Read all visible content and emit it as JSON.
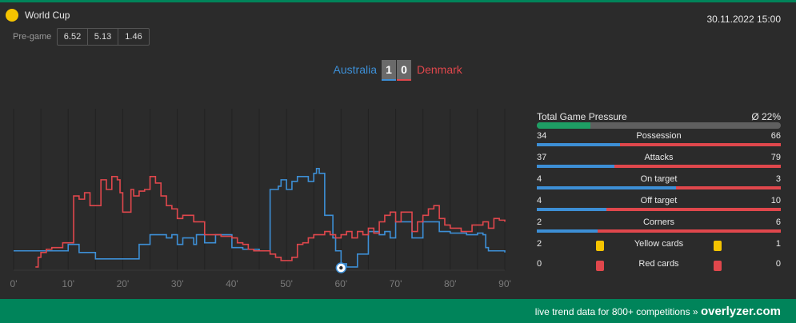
{
  "header": {
    "competition": "World Cup",
    "datetime": "30.11.2022 15:00",
    "pregame_label": "Pre-game",
    "odds": [
      "6.52",
      "5.13",
      "1.46"
    ]
  },
  "match": {
    "home_team": "Australia",
    "away_team": "Denmark",
    "home_score": "1",
    "away_score": "0"
  },
  "chart_data": {
    "type": "line",
    "title": "",
    "xlabel": "",
    "ylabel": "",
    "xlim": [
      0,
      90
    ],
    "x_ticks": [
      "0'",
      "10'",
      "20'",
      "30'",
      "40'",
      "50'",
      "60'",
      "70'",
      "80'",
      "90'"
    ],
    "grid": "vertical",
    "goal_event": {
      "minute": 60,
      "team": "Australia"
    },
    "series": [
      {
        "name": "Australia",
        "color": "#3d8fd6",
        "points": [
          [
            0,
            0.12
          ],
          [
            4,
            0.12
          ],
          [
            5,
            0.12
          ],
          [
            9,
            0.12
          ],
          [
            10,
            0.16
          ],
          [
            11,
            0.16
          ],
          [
            12,
            0.11
          ],
          [
            14,
            0.11
          ],
          [
            15,
            0.07
          ],
          [
            22,
            0.07
          ],
          [
            23,
            0.16
          ],
          [
            24,
            0.16
          ],
          [
            25,
            0.22
          ],
          [
            27,
            0.22
          ],
          [
            28,
            0.2
          ],
          [
            29,
            0.22
          ],
          [
            30,
            0.16
          ],
          [
            31,
            0.2
          ],
          [
            32,
            0.2
          ],
          [
            33,
            0.16
          ],
          [
            33.5,
            0.22
          ],
          [
            34,
            0.22
          ],
          [
            35,
            0.17
          ],
          [
            36,
            0.17
          ],
          [
            37,
            0.22
          ],
          [
            39,
            0.22
          ],
          [
            40,
            0.14
          ],
          [
            41,
            0.14
          ],
          [
            42,
            0.13
          ],
          [
            44,
            0.13
          ],
          [
            45,
            0.12
          ],
          [
            46,
            0.12
          ],
          [
            47,
            0.5
          ],
          [
            48,
            0.5
          ],
          [
            48.5,
            0.52
          ],
          [
            49,
            0.56
          ],
          [
            50,
            0.5
          ],
          [
            51,
            0.55
          ],
          [
            52,
            0.58
          ],
          [
            53,
            0.58
          ],
          [
            54,
            0.55
          ],
          [
            55,
            0.6
          ],
          [
            55.5,
            0.63
          ],
          [
            56,
            0.6
          ],
          [
            57,
            0.34
          ],
          [
            58,
            0.34
          ],
          [
            58.5,
            0.2
          ],
          [
            59,
            0.12
          ],
          [
            60,
            0.04
          ],
          [
            61,
            0.02
          ],
          [
            62,
            0.02
          ],
          [
            63,
            0.1
          ],
          [
            64,
            0.1
          ],
          [
            65,
            0.24
          ],
          [
            66,
            0.24
          ],
          [
            67,
            0.22
          ],
          [
            68,
            0.24
          ],
          [
            69,
            0.2
          ],
          [
            70,
            0.3
          ],
          [
            72,
            0.3
          ],
          [
            73,
            0.2
          ],
          [
            74,
            0.2
          ],
          [
            75,
            0.3
          ],
          [
            77,
            0.3
          ],
          [
            78,
            0.24
          ],
          [
            79,
            0.24
          ],
          [
            80,
            0.23
          ],
          [
            81,
            0.23
          ],
          [
            82,
            0.23
          ],
          [
            83,
            0.22
          ],
          [
            84,
            0.22
          ],
          [
            85,
            0.23
          ],
          [
            86,
            0.22
          ],
          [
            86.5,
            0.14
          ],
          [
            87,
            0.12
          ],
          [
            88,
            0.12
          ],
          [
            90,
            0.11
          ]
        ],
        "values_note": "pressure fraction 0-1 read from line height"
      },
      {
        "name": "Denmark",
        "color": "#e0474c",
        "points": [
          [
            4,
            0.02
          ],
          [
            4.5,
            0.08
          ],
          [
            5,
            0.11
          ],
          [
            6,
            0.13
          ],
          [
            7,
            0.14
          ],
          [
            9,
            0.17
          ],
          [
            10,
            0.17
          ],
          [
            11,
            0.46
          ],
          [
            12,
            0.44
          ],
          [
            13,
            0.48
          ],
          [
            14,
            0.4
          ],
          [
            15,
            0.4
          ],
          [
            16,
            0.56
          ],
          [
            17,
            0.5
          ],
          [
            18,
            0.58
          ],
          [
            19,
            0.56
          ],
          [
            19.5,
            0.48
          ],
          [
            20,
            0.36
          ],
          [
            21,
            0.36
          ],
          [
            21.5,
            0.5
          ],
          [
            22,
            0.46
          ],
          [
            23,
            0.49
          ],
          [
            24,
            0.5
          ],
          [
            25,
            0.58
          ],
          [
            26,
            0.54
          ],
          [
            27,
            0.46
          ],
          [
            28,
            0.4
          ],
          [
            29,
            0.38
          ],
          [
            30,
            0.32
          ],
          [
            31,
            0.34
          ],
          [
            32,
            0.34
          ],
          [
            33,
            0.3
          ],
          [
            34,
            0.3
          ],
          [
            35,
            0.22
          ],
          [
            37,
            0.22
          ],
          [
            38,
            0.21
          ],
          [
            39,
            0.21
          ],
          [
            40,
            0.2
          ],
          [
            41,
            0.17
          ],
          [
            42,
            0.16
          ],
          [
            43,
            0.13
          ],
          [
            44,
            0.12
          ],
          [
            45,
            0.12
          ],
          [
            46,
            0.12
          ],
          [
            47,
            0.1
          ],
          [
            48,
            0.08
          ],
          [
            49,
            0.06
          ],
          [
            50,
            0.06
          ],
          [
            51,
            0.08
          ],
          [
            52,
            0.16
          ],
          [
            53,
            0.17
          ],
          [
            54,
            0.2
          ],
          [
            55,
            0.22
          ],
          [
            56,
            0.22
          ],
          [
            57,
            0.24
          ],
          [
            58,
            0.22
          ],
          [
            59,
            0.2
          ],
          [
            60,
            0.22
          ],
          [
            61,
            0.24
          ],
          [
            62,
            0.2
          ],
          [
            63,
            0.24
          ],
          [
            64,
            0.22
          ],
          [
            65,
            0.26
          ],
          [
            66,
            0.23
          ],
          [
            67,
            0.3
          ],
          [
            68,
            0.34
          ],
          [
            69,
            0.36
          ],
          [
            70,
            0.3
          ],
          [
            71,
            0.36
          ],
          [
            72,
            0.36
          ],
          [
            73,
            0.24
          ],
          [
            74,
            0.3
          ],
          [
            75,
            0.34
          ],
          [
            76,
            0.38
          ],
          [
            77,
            0.4
          ],
          [
            78,
            0.32
          ],
          [
            79,
            0.28
          ],
          [
            80,
            0.26
          ],
          [
            81,
            0.26
          ],
          [
            82,
            0.24
          ],
          [
            83,
            0.24
          ],
          [
            84,
            0.28
          ],
          [
            85,
            0.28
          ],
          [
            86,
            0.3
          ],
          [
            87,
            0.26
          ],
          [
            88,
            0.32
          ],
          [
            89,
            0.31
          ],
          [
            90,
            0.3
          ]
        ],
        "values_note": "pressure fraction 0-1 read from line height"
      }
    ]
  },
  "stats": {
    "pressure": {
      "label": "Total Game Pressure",
      "value": "Ø 22%",
      "fraction": 0.22
    },
    "rows": [
      {
        "label": "Possession",
        "home": "34",
        "away": "66"
      },
      {
        "label": "Attacks",
        "home": "37",
        "away": "79"
      },
      {
        "label": "On target",
        "home": "4",
        "away": "3"
      },
      {
        "label": "Off target",
        "home": "4",
        "away": "10"
      },
      {
        "label": "Corners",
        "home": "2",
        "away": "6"
      }
    ],
    "cards": [
      {
        "label": "Yellow cards",
        "home": "2",
        "away": "1",
        "color": "#f5c400"
      },
      {
        "label": "Red cards",
        "home": "0",
        "away": "0",
        "color": "#e0474c"
      }
    ]
  },
  "footer": {
    "text": "live trend data for 800+ competitions »",
    "brand": "overlyzer.com"
  },
  "colors": {
    "accent": "#00845a",
    "home": "#3d8fd6",
    "away": "#e0474c",
    "background": "#2b2b2b"
  }
}
